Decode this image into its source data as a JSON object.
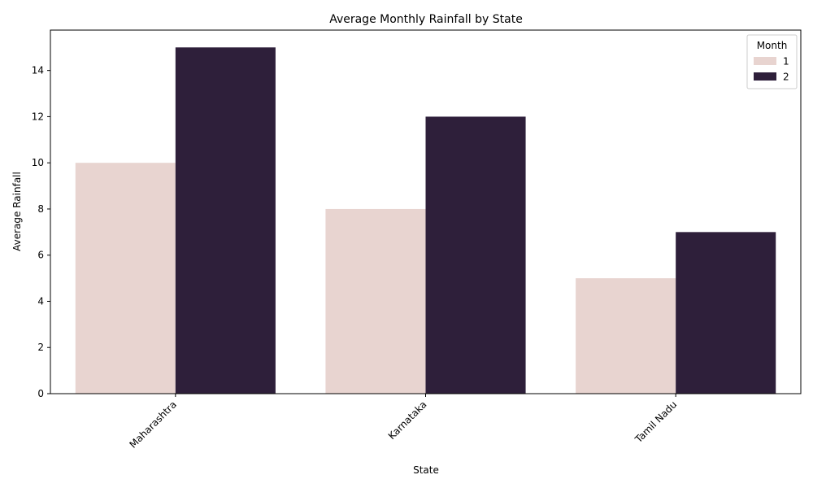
{
  "chart_data": {
    "type": "bar",
    "title": "Average Monthly Rainfall by State",
    "xlabel": "State",
    "ylabel": "Average Rainfall",
    "categories": [
      "Maharashtra",
      "Karnataka",
      "Tamil Nadu"
    ],
    "series": [
      {
        "name": "1",
        "values": [
          10,
          8,
          5
        ],
        "color": "#e8d4d0"
      },
      {
        "name": "2",
        "values": [
          15,
          12,
          7
        ],
        "color": "#2e1f3a"
      }
    ],
    "ylim": [
      0,
      15.75
    ],
    "yticks": [
      0,
      2,
      4,
      6,
      8,
      10,
      12,
      14
    ],
    "grid": false,
    "legend": {
      "title": "Month",
      "placement": "top-right"
    }
  }
}
